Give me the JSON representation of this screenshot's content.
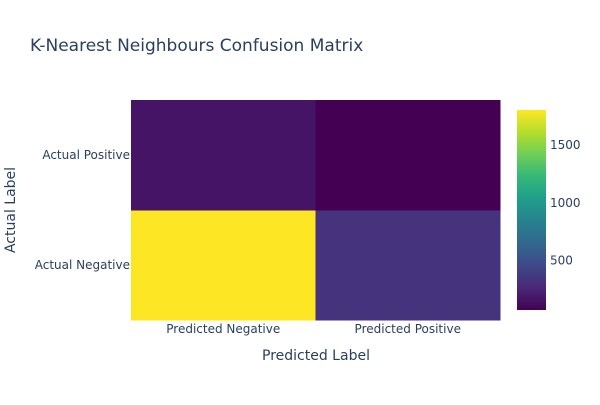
{
  "chart_data": {
    "type": "heatmap",
    "title": "K-Nearest Neighbours Confusion Matrix",
    "xlabel": "Predicted Label",
    "ylabel": "Actual Label",
    "x_categories": [
      "Predicted Negative",
      "Predicted Positive"
    ],
    "y_categories": [
      "Actual Negative",
      "Actual Positive"
    ],
    "z": [
      [
        1800,
        330
      ],
      [
        170,
        75
      ]
    ],
    "colorscale": "Viridis",
    "zrange": [
      75,
      1800
    ],
    "colorbar": {
      "tickvals": [
        500,
        1000,
        1500
      ],
      "ticktext": [
        "500",
        "1000",
        "1500"
      ]
    },
    "text_color": "#2a3f5f"
  }
}
